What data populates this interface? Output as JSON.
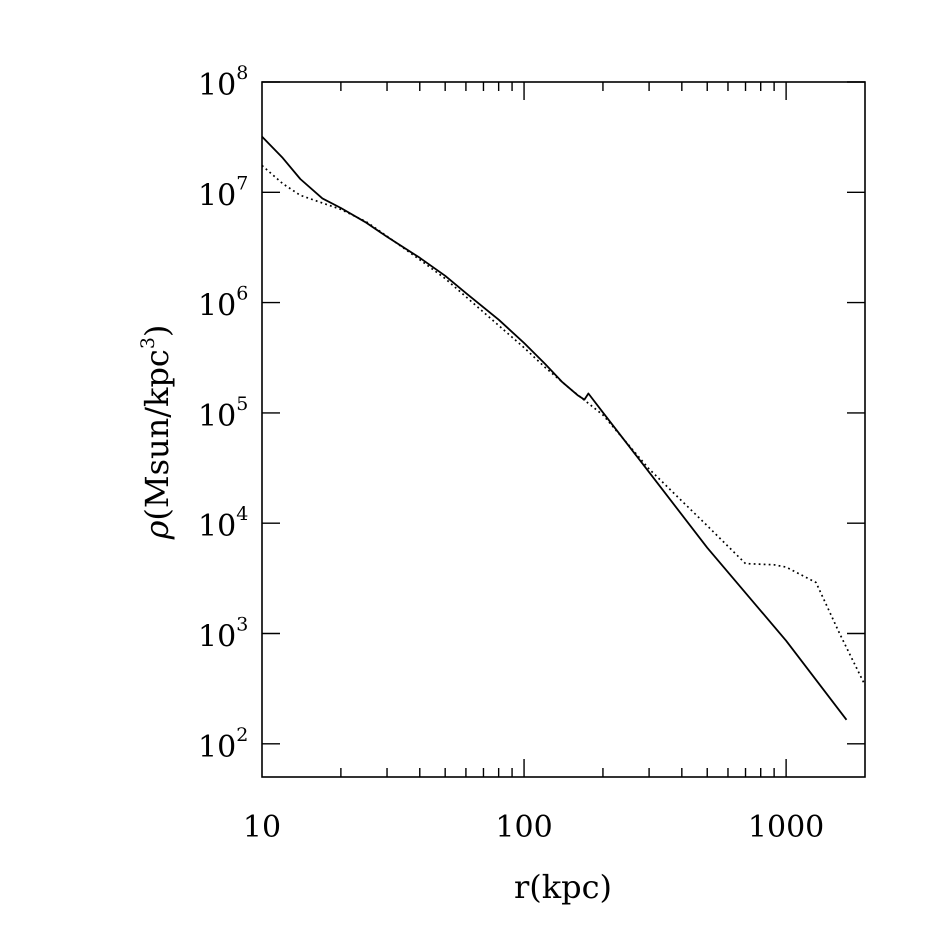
{
  "chart_data": {
    "type": "line",
    "xlabel": "r(kpc)",
    "ylabel": "ρ(Msun/kpc³)",
    "ylabel_parts": {
      "symbol": "ρ",
      "base": "(Msun/kpc",
      "exp": "3",
      "close": ")"
    },
    "xscale": "log",
    "yscale": "log",
    "xlim": [
      10,
      2000
    ],
    "ylim": [
      50,
      100000000
    ],
    "grid": false,
    "x_ticks": [
      {
        "value": 10,
        "label": "10"
      },
      {
        "value": 100,
        "label": "100"
      },
      {
        "value": 1000,
        "label": "1000"
      }
    ],
    "y_ticks": [
      {
        "value": 100,
        "base": "10",
        "exp": "2"
      },
      {
        "value": 1000,
        "base": "10",
        "exp": "3"
      },
      {
        "value": 10000,
        "base": "10",
        "exp": "4"
      },
      {
        "value": 100000,
        "base": "10",
        "exp": "5"
      },
      {
        "value": 1000000,
        "base": "10",
        "exp": "6"
      },
      {
        "value": 10000000,
        "base": "10",
        "exp": "7"
      },
      {
        "value": 100000000,
        "base": "10",
        "exp": "8"
      }
    ],
    "series": [
      {
        "style": "solid",
        "color": "#000000",
        "points": [
          [
            10,
            32000000
          ],
          [
            12,
            20500000
          ],
          [
            14,
            13200000
          ],
          [
            17,
            8800000
          ],
          [
            20,
            7200000
          ],
          [
            25,
            5300000
          ],
          [
            30,
            3950000
          ],
          [
            40,
            2550000
          ],
          [
            50,
            1750000
          ],
          [
            60,
            1220000
          ],
          [
            80,
            700000
          ],
          [
            100,
            430000
          ],
          [
            120,
            280000
          ],
          [
            140,
            190000
          ],
          [
            160,
            145000
          ],
          [
            170,
            132000
          ],
          [
            176,
            150000
          ],
          [
            200,
            101000
          ],
          [
            300,
            29000
          ],
          [
            500,
            6000
          ],
          [
            1000,
            860
          ],
          [
            1700,
            165
          ]
        ]
      },
      {
        "style": "dotted",
        "color": "#000000",
        "points": [
          [
            10,
            17500000
          ],
          [
            12,
            12000000
          ],
          [
            14,
            9400000
          ],
          [
            17,
            8000000
          ],
          [
            20,
            7000000
          ],
          [
            25,
            5400000
          ],
          [
            30,
            4000000
          ],
          [
            40,
            2450000
          ],
          [
            50,
            1650000
          ],
          [
            60,
            1130000
          ],
          [
            80,
            620000
          ],
          [
            100,
            390000
          ],
          [
            120,
            260000
          ],
          [
            150,
            165000
          ],
          [
            200,
            96000
          ],
          [
            300,
            31000
          ],
          [
            500,
            9500
          ],
          [
            700,
            4300
          ],
          [
            900,
            4200
          ],
          [
            1000,
            4000
          ],
          [
            1300,
            2900
          ],
          [
            1600,
            1000
          ],
          [
            2000,
            340
          ]
        ]
      }
    ]
  }
}
